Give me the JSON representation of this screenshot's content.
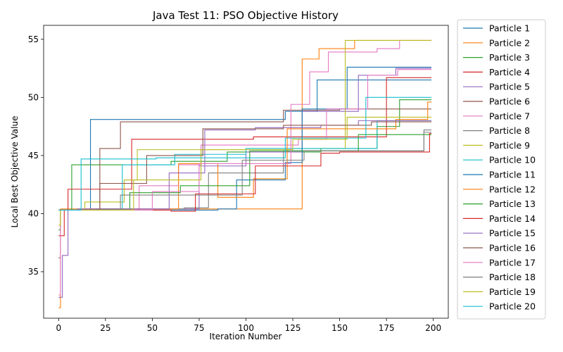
{
  "chart_data": {
    "type": "line",
    "title": "Java Test 11: PSO Objective History",
    "xlabel": "Iteration Number",
    "ylabel": "Local Best Objective Value",
    "xlim": [
      -8,
      208
    ],
    "ylim": [
      31,
      56.2
    ],
    "xticks": [
      0,
      25,
      50,
      75,
      100,
      125,
      150,
      175,
      200
    ],
    "yticks": [
      35,
      40,
      45,
      50,
      55
    ],
    "grid": false,
    "legend_placement": "outside-right",
    "step": true,
    "series": [
      {
        "name": "Particle 1",
        "color": "#1f77b4",
        "points": [
          [
            0,
            40.3
          ],
          [
            17,
            48.1
          ],
          [
            121,
            48.8
          ],
          [
            138,
            51.5
          ],
          [
            199,
            51.5
          ]
        ]
      },
      {
        "name": "Particle 2",
        "color": "#ff7f0e",
        "points": [
          [
            0,
            31.9
          ],
          [
            1,
            40.4
          ],
          [
            130,
            53.3
          ],
          [
            139,
            54.2
          ],
          [
            158,
            54.9
          ],
          [
            199,
            54.9
          ]
        ]
      },
      {
        "name": "Particle 3",
        "color": "#2ca02c",
        "points": [
          [
            0,
            38.6
          ],
          [
            1,
            40.3
          ],
          [
            7,
            44.2
          ],
          [
            60,
            44.5
          ],
          [
            90,
            45.3
          ],
          [
            140,
            45.6
          ],
          [
            170,
            47.5
          ],
          [
            182,
            49.8
          ],
          [
            199,
            49.8
          ]
        ]
      },
      {
        "name": "Particle 4",
        "color": "#d62728",
        "points": [
          [
            0,
            38.1
          ],
          [
            3,
            40.3
          ],
          [
            5,
            42.1
          ],
          [
            39,
            46.4
          ],
          [
            104,
            46.6
          ],
          [
            175,
            51.7
          ],
          [
            199,
            51.7
          ]
        ]
      },
      {
        "name": "Particle 5",
        "color": "#9467bd",
        "points": [
          [
            0,
            32.8
          ],
          [
            2,
            36.4
          ],
          [
            5,
            40.3
          ],
          [
            20,
            40.4
          ],
          [
            75,
            44.1
          ],
          [
            100,
            45.3
          ],
          [
            130,
            48.8
          ],
          [
            160,
            51.9
          ],
          [
            180,
            52.5
          ],
          [
            199,
            52.5
          ]
        ]
      },
      {
        "name": "Particle 6",
        "color": "#8c564b",
        "points": [
          [
            0,
            36.2
          ],
          [
            1,
            40.3
          ],
          [
            22,
            45.6
          ],
          [
            33,
            47.9
          ],
          [
            120,
            48.9
          ],
          [
            150,
            49.0
          ],
          [
            199,
            49.0
          ]
        ]
      },
      {
        "name": "Particle 7",
        "color": "#e377c2",
        "points": [
          [
            0,
            33.0
          ],
          [
            1,
            40.3
          ],
          [
            40,
            40.3
          ],
          [
            43,
            42.4
          ],
          [
            64,
            44.2
          ],
          [
            76,
            45.9
          ],
          [
            124,
            49.4
          ],
          [
            134,
            52.2
          ],
          [
            144,
            53.9
          ],
          [
            170,
            54.2
          ],
          [
            182,
            54.9
          ],
          [
            199,
            54.9
          ]
        ]
      },
      {
        "name": "Particle 8",
        "color": "#7f7f7f",
        "points": [
          [
            0,
            40.3
          ],
          [
            15,
            40.4
          ],
          [
            67,
            40.5
          ],
          [
            80,
            43.5
          ],
          [
            120,
            45.4
          ],
          [
            195,
            47.0
          ],
          [
            199,
            47.0
          ]
        ]
      },
      {
        "name": "Particle 9",
        "color": "#bcbd22",
        "points": [
          [
            0,
            39.0
          ],
          [
            1,
            40.3
          ],
          [
            14,
            41.0
          ],
          [
            35,
            42.9
          ],
          [
            42,
            45.5
          ],
          [
            100,
            45.6
          ],
          [
            153,
            54.9
          ],
          [
            199,
            54.9
          ]
        ]
      },
      {
        "name": "Particle 10",
        "color": "#17becf",
        "points": [
          [
            0,
            40.3
          ],
          [
            30,
            40.4
          ],
          [
            34,
            44.2
          ],
          [
            62,
            45.1
          ],
          [
            100,
            45.6
          ],
          [
            170,
            48.0
          ],
          [
            199,
            48.0
          ]
        ]
      },
      {
        "name": "Particle 11",
        "color": "#1f77b4",
        "points": [
          [
            0,
            40.3
          ],
          [
            40,
            40.3
          ],
          [
            85,
            40.4
          ],
          [
            95,
            42.9
          ],
          [
            121,
            44.4
          ],
          [
            130,
            49.0
          ],
          [
            154,
            52.6
          ],
          [
            199,
            52.6
          ]
        ]
      },
      {
        "name": "Particle 12",
        "color": "#ff7f0e",
        "points": [
          [
            0,
            40.3
          ],
          [
            15,
            40.4
          ],
          [
            64,
            44.3
          ],
          [
            85,
            41.4
          ],
          [
            104,
            43.0
          ],
          [
            122,
            47.3
          ],
          [
            180,
            48.1
          ],
          [
            197,
            49.6
          ],
          [
            199,
            49.6
          ]
        ]
      },
      {
        "name": "Particle 13",
        "color": "#2ca02c",
        "points": [
          [
            0,
            40.3
          ],
          [
            20,
            40.4
          ],
          [
            38,
            41.8
          ],
          [
            65,
            42.4
          ],
          [
            102,
            45.4
          ],
          [
            160,
            46.8
          ],
          [
            199,
            46.8
          ]
        ]
      },
      {
        "name": "Particle 14",
        "color": "#d62728",
        "points": [
          [
            0,
            40.3
          ],
          [
            60,
            40.2
          ],
          [
            73,
            41.7
          ],
          [
            105,
            44.1
          ],
          [
            140,
            45.2
          ],
          [
            150,
            45.3
          ],
          [
            198,
            46.9
          ],
          [
            199,
            46.9
          ]
        ]
      },
      {
        "name": "Particle 15",
        "color": "#9467bd",
        "points": [
          [
            0,
            40.3
          ],
          [
            10,
            40.4
          ],
          [
            59,
            43.5
          ],
          [
            78,
            47.2
          ],
          [
            105,
            47.4
          ],
          [
            140,
            47.6
          ],
          [
            160,
            48.0
          ],
          [
            199,
            48.0
          ]
        ]
      },
      {
        "name": "Particle 16",
        "color": "#8c564b",
        "points": [
          [
            0,
            40.3
          ],
          [
            22,
            42.6
          ],
          [
            47,
            45.0
          ],
          [
            77,
            47.3
          ],
          [
            120,
            47.6
          ],
          [
            167,
            47.9
          ],
          [
            199,
            47.9
          ]
        ]
      },
      {
        "name": "Particle 17",
        "color": "#e377c2",
        "points": [
          [
            0,
            40.3
          ],
          [
            50,
            41.9
          ],
          [
            75,
            44.3
          ],
          [
            119,
            44.3
          ],
          [
            124,
            45.9
          ],
          [
            128,
            46.4
          ],
          [
            143,
            49.0
          ],
          [
            165,
            51.9
          ],
          [
            181,
            52.4
          ],
          [
            199,
            52.4
          ]
        ]
      },
      {
        "name": "Particle 18",
        "color": "#7f7f7f",
        "points": [
          [
            0,
            40.3
          ],
          [
            33,
            41.6
          ],
          [
            62,
            41.6
          ],
          [
            98,
            44.6
          ],
          [
            131,
            45.4
          ],
          [
            195,
            47.2
          ],
          [
            199,
            47.2
          ]
        ]
      },
      {
        "name": "Particle 19",
        "color": "#bcbd22",
        "points": [
          [
            0,
            40.3
          ],
          [
            40,
            42.9
          ],
          [
            76,
            45.5
          ],
          [
            125,
            46.4
          ],
          [
            154,
            48.3
          ],
          [
            199,
            48.3
          ]
        ]
      },
      {
        "name": "Particle 20",
        "color": "#17becf",
        "points": [
          [
            0,
            40.3
          ],
          [
            12,
            44.7
          ],
          [
            52,
            44.8
          ],
          [
            121,
            46.5
          ],
          [
            164,
            50.0
          ],
          [
            199,
            50.0
          ]
        ]
      }
    ]
  }
}
